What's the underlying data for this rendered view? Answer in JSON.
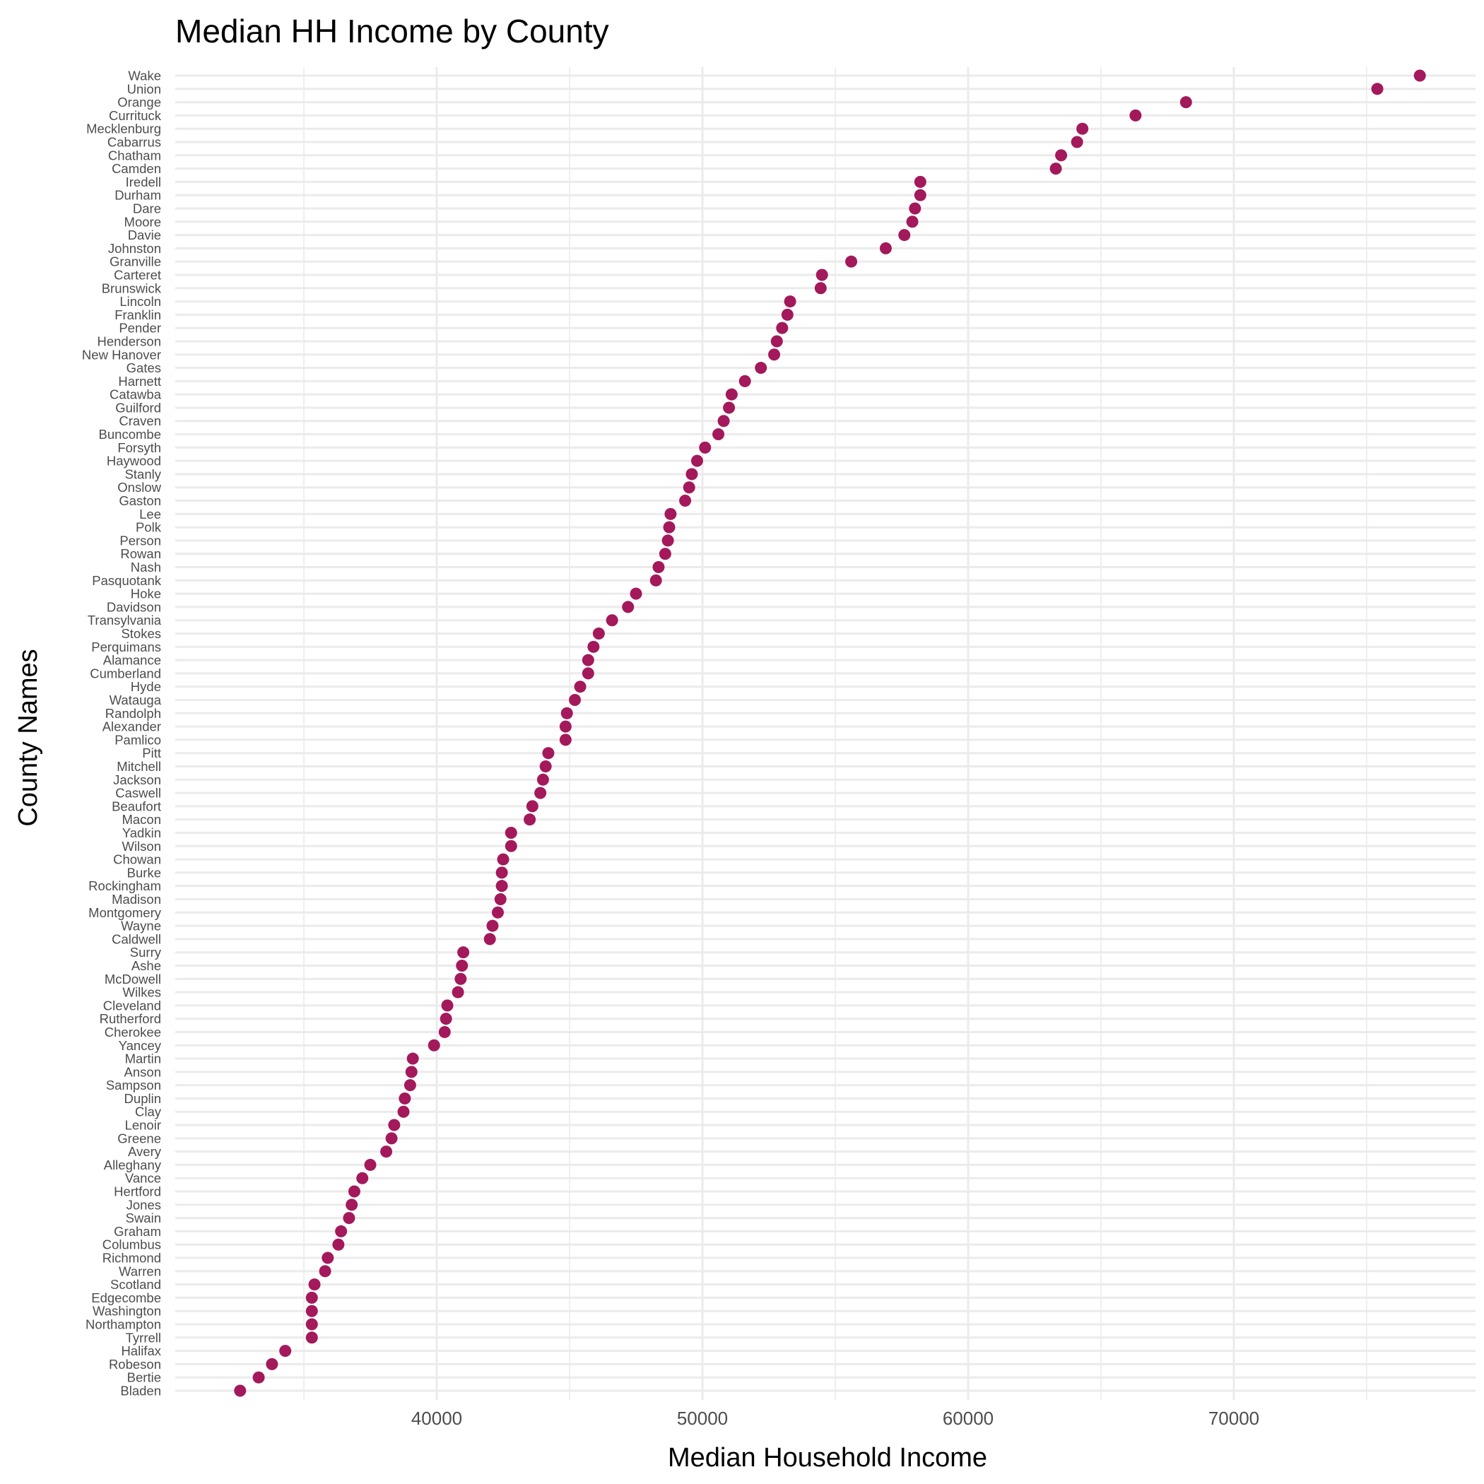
{
  "chart_data": {
    "type": "scatter",
    "title": "Median HH Income by County",
    "xlabel": "Median Household Income",
    "ylabel": "County Names",
    "xlim": [
      30000,
      79000
    ],
    "x_ticks": [
      40000,
      50000,
      60000,
      70000
    ],
    "x_minor_ticks": [
      35000,
      45000,
      55000,
      65000,
      75000
    ],
    "grid": true,
    "legend": "none",
    "point_color": "#a3195b",
    "grid_color": "#ebebeb",
    "counties": [
      "Wake",
      "Union",
      "Orange",
      "Currituck",
      "Mecklenburg",
      "Cabarrus",
      "Chatham",
      "Camden",
      "Iredell",
      "Durham",
      "Dare",
      "Moore",
      "Davie",
      "Johnston",
      "Granville",
      "Carteret",
      "Brunswick",
      "Lincoln",
      "Franklin",
      "Pender",
      "Henderson",
      "New Hanover",
      "Gates",
      "Harnett",
      "Catawba",
      "Guilford",
      "Craven",
      "Buncombe",
      "Forsyth",
      "Haywood",
      "Stanly",
      "Onslow",
      "Gaston",
      "Lee",
      "Polk",
      "Person",
      "Rowan",
      "Nash",
      "Pasquotank",
      "Hoke",
      "Davidson",
      "Transylvania",
      "Stokes",
      "Perquimans",
      "Alamance",
      "Cumberland",
      "Hyde",
      "Watauga",
      "Randolph",
      "Alexander",
      "Pamlico",
      "Pitt",
      "Mitchell",
      "Jackson",
      "Caswell",
      "Beaufort",
      "Macon",
      "Yadkin",
      "Wilson",
      "Chowan",
      "Burke",
      "Rockingham",
      "Madison",
      "Montgomery",
      "Wayne",
      "Caldwell",
      "Surry",
      "Ashe",
      "McDowell",
      "Wilkes",
      "Cleveland",
      "Rutherford",
      "Cherokee",
      "Yancey",
      "Martin",
      "Anson",
      "Sampson",
      "Duplin",
      "Clay",
      "Lenoir",
      "Greene",
      "Avery",
      "Alleghany",
      "Vance",
      "Hertford",
      "Jones",
      "Swain",
      "Graham",
      "Columbus",
      "Richmond",
      "Warren",
      "Scotland",
      "Edgecombe",
      "Washington",
      "Northampton",
      "Tyrrell",
      "Halifax",
      "Robeson",
      "Bertie",
      "Bladen"
    ],
    "values": [
      77000,
      75400,
      68200,
      66300,
      64300,
      64100,
      63500,
      63300,
      58200,
      58200,
      58000,
      57900,
      57600,
      56900,
      55600,
      54500,
      54450,
      53300,
      53200,
      53000,
      52800,
      52700,
      52200,
      51600,
      51100,
      51000,
      50800,
      50600,
      50100,
      49800,
      49600,
      49500,
      49350,
      48800,
      48750,
      48700,
      48600,
      48350,
      48250,
      47500,
      47200,
      46600,
      46100,
      45900,
      45700,
      45700,
      45400,
      45200,
      44900,
      44850,
      44850,
      44200,
      44100,
      44000,
      43900,
      43600,
      43500,
      42800,
      42800,
      42500,
      42450,
      42450,
      42400,
      42300,
      42100,
      42000,
      41000,
      40950,
      40900,
      40800,
      40400,
      40350,
      40300,
      39900,
      39100,
      39050,
      39000,
      38800,
      38750,
      38400,
      38300,
      38100,
      37500,
      37200,
      36900,
      36800,
      36700,
      36400,
      36300,
      35900,
      35800,
      35400,
      35300,
      35300,
      35300,
      35300,
      34300,
      33800,
      33300,
      32600
    ]
  }
}
